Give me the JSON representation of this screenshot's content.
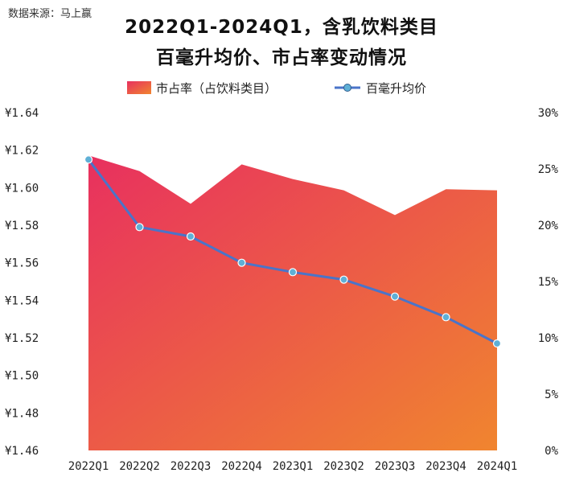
{
  "source_note": "数据来源：马上赢",
  "title_line1": "2022Q1-2024Q1，含乳饮料类目",
  "title_line2": "百毫升均价、市占率变动情况",
  "chart_data": {
    "type": "area",
    "categories": [
      "2022Q1",
      "2022Q2",
      "2022Q3",
      "2022Q4",
      "2023Q1",
      "2023Q2",
      "2023Q3",
      "2023Q4",
      "2024Q1"
    ],
    "series": [
      {
        "name": "市占率（占饮料类目）",
        "type": "area",
        "axis": "right",
        "values": [
          26.2,
          24.8,
          21.9,
          25.4,
          24.1,
          23.1,
          20.9,
          23.2,
          23.1
        ]
      },
      {
        "name": "百毫升均价",
        "type": "line",
        "axis": "left",
        "values": [
          1.615,
          1.579,
          1.574,
          1.56,
          1.555,
          1.551,
          1.542,
          1.531,
          1.517
        ]
      }
    ],
    "y_left": {
      "ylim": [
        1.46,
        1.64
      ],
      "ticks": [
        "¥1.64",
        "¥1.62",
        "¥1.60",
        "¥1.58",
        "¥1.56",
        "¥1.54",
        "¥1.52",
        "¥1.50",
        "¥1.48",
        "¥1.46"
      ]
    },
    "y_right": {
      "ylim": [
        0,
        30
      ],
      "ticks": [
        "30%",
        "25%",
        "20%",
        "15%",
        "10%",
        "5%",
        "0%"
      ]
    },
    "grid": false,
    "legend": "top-center",
    "colors": {
      "area_top_left": "#e8305f",
      "area_bottom_right": "#f0852f",
      "line": "#4a74c9",
      "marker": "#5fb0d6"
    }
  }
}
